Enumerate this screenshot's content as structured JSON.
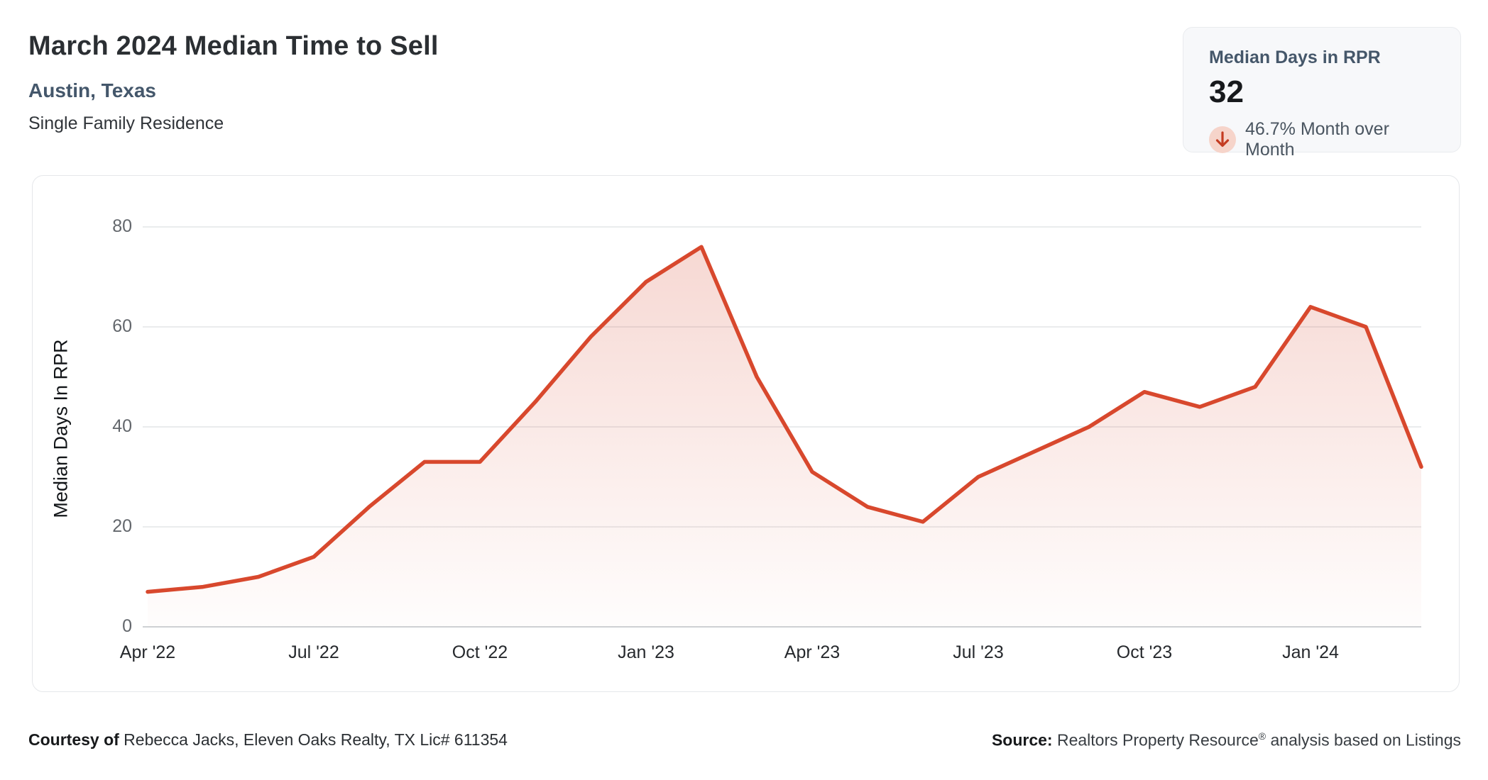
{
  "header": {
    "title": "March 2024 Median Time to Sell",
    "location": "Austin, Texas",
    "property_type": "Single Family Residence"
  },
  "stat_card": {
    "label": "Median Days in RPR",
    "value": "32",
    "change_direction": "down",
    "change_text": "46.7% Month over Month",
    "arrow_color": "#c43c22",
    "arrow_bg": "#f6d4ca"
  },
  "chart_data": {
    "type": "area",
    "title": "March 2024 Median Time to Sell",
    "ylabel": "Median Days In RPR",
    "xlabel": "",
    "x": [
      "Apr '22",
      "May '22",
      "Jun '22",
      "Jul '22",
      "Aug '22",
      "Sep '22",
      "Oct '22",
      "Nov '22",
      "Dec '22",
      "Jan '23",
      "Feb '23",
      "Mar '23",
      "Apr '23",
      "May '23",
      "Jun '23",
      "Jul '23",
      "Aug '23",
      "Sep '23",
      "Oct '23",
      "Nov '23",
      "Dec '23",
      "Jan '24",
      "Feb '24",
      "Mar '24"
    ],
    "values": [
      7,
      8,
      10,
      14,
      24,
      33,
      33,
      45,
      58,
      69,
      76,
      50,
      31,
      24,
      21,
      30,
      35,
      40,
      47,
      44,
      48,
      64,
      60,
      32
    ],
    "x_tick_labels": [
      "Apr '22",
      "Jul '22",
      "Oct '22",
      "Jan '23",
      "Apr '23",
      "Jul '23",
      "Oct '23",
      "Jan '24"
    ],
    "x_tick_step": 3,
    "y_ticks": [
      80,
      60,
      40,
      20,
      0
    ],
    "ylim": [
      0,
      80
    ],
    "grid": "horizontal",
    "legend": "none",
    "line_color": "#d8482d",
    "area_gradient_top": "rgba(215,70,45,0.22)",
    "area_gradient_bottom": "rgba(215,70,45,0.01)",
    "gridline_color": "#e3e5e7",
    "baseline_color": "#ced1d4"
  },
  "footer": {
    "courtesy_label": "Courtesy of",
    "courtesy_text": " Rebecca Jacks, Eleven Oaks Realty, TX Lic# 611354",
    "source_label": "Source:",
    "source_name": " Realtors Property Resource",
    "source_reg": "®",
    "source_rest": " analysis based on Listings"
  }
}
